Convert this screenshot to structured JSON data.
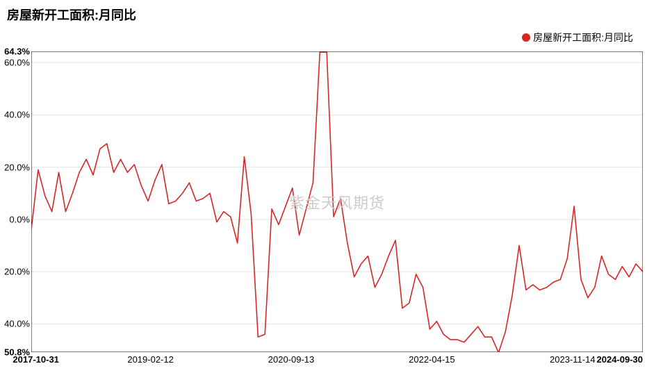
{
  "chart": {
    "type": "line",
    "title": "房屋新开工面积:月同比",
    "title_fontsize": 18,
    "watermark": "紫金天风期货",
    "legend": {
      "label": "房屋新开工面积:月同比",
      "marker_color": "#d62728"
    },
    "line_color": "#d62728",
    "line_width": 1.6,
    "grid_color": "#e5e5e5",
    "axis_color": "#000000",
    "background_color": "#ffffff",
    "y_axis": {
      "min": -50.8,
      "max": 64.3,
      "min_label": "50.8%",
      "max_label": "64.3%",
      "ticks": [
        -40,
        -20,
        0,
        20,
        40,
        60
      ],
      "tick_labels": [
        "40.0%",
        "20.0%",
        "0.0%",
        "20.0%",
        "40.0%",
        "60.0%"
      ]
    },
    "x_axis": {
      "start_label": "2017-10-31",
      "end_label": "2024-09-30",
      "ticks": [
        0.195,
        0.425,
        0.655,
        0.885
      ],
      "tick_labels": [
        "2019-02-12",
        "2020-09-13",
        "2022-04-15",
        "2023-11-14"
      ]
    },
    "series": [
      -4,
      19,
      9,
      3,
      18,
      3,
      10,
      18,
      23,
      17,
      27,
      29,
      18,
      23,
      18,
      21,
      13,
      7,
      15,
      21,
      6,
      7,
      10,
      14,
      7,
      8,
      10,
      -1,
      3,
      1,
      -9,
      24,
      2,
      -45,
      -44,
      4,
      -2,
      5,
      12,
      -6,
      4,
      14,
      64,
      64,
      1,
      8,
      -9,
      -22,
      -17,
      -14,
      -26,
      -21,
      -14,
      -8,
      -34,
      -32,
      -21,
      -26,
      -42,
      -39,
      -44,
      -46,
      -46,
      -47,
      -44,
      -41,
      -45,
      -45,
      -51,
      -43,
      -29,
      -10,
      -27,
      -25,
      -27,
      -26,
      -24,
      -23,
      -15,
      5,
      -23,
      -30,
      -26,
      -14,
      -21,
      -23,
      -18,
      -22,
      -17,
      -20
    ]
  }
}
